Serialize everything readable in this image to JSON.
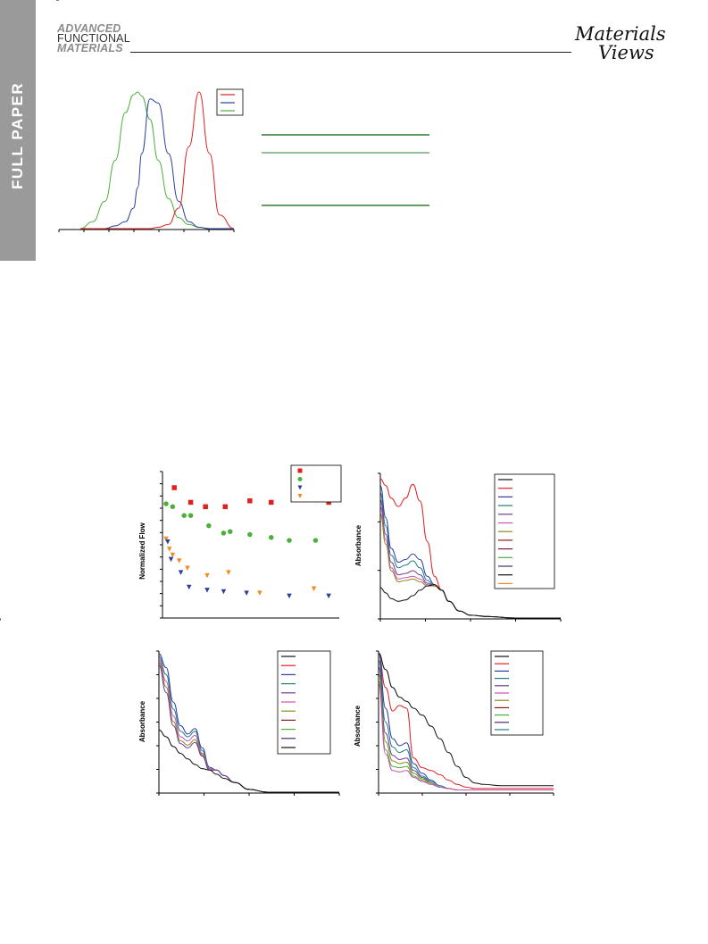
{
  "header": {
    "section_label": "FULL PAPER",
    "journal_logo": [
      "ADVANCED",
      "FUNCTIONAL",
      "MATERIALS"
    ],
    "publisher_logo": [
      "Materials",
      "Views"
    ]
  },
  "colors": {
    "red": "#e02020",
    "blue": "#2c3f9e",
    "green": "#4caf3a",
    "orange": "#f28c1e",
    "sidebar": "#9a9a9a"
  },
  "chart_data": [
    {
      "id": "emission-spectra",
      "type": "line",
      "x": [
        0,
        6,
        12,
        17,
        22,
        26,
        28,
        30,
        34,
        38,
        43,
        48,
        53,
        58,
        63,
        68,
        75
      ],
      "ylim": [
        0,
        1
      ],
      "series": [
        {
          "color": "green",
          "values": [
            0.0,
            0.05,
            0.2,
            0.5,
            0.85,
            0.98,
            1.0,
            0.97,
            0.8,
            0.5,
            0.22,
            0.08,
            0.03,
            0.01,
            0.0,
            0.0,
            0.0
          ]
        },
        {
          "color": "blue",
          "values": [
            0.0,
            0.0,
            0.0,
            0.02,
            0.05,
            0.15,
            0.3,
            0.55,
            0.95,
            0.92,
            0.55,
            0.2,
            0.05,
            0.01,
            0.0,
            0.0,
            0.0
          ]
        },
        {
          "color": "red",
          "values": [
            0.0,
            0.0,
            0.0,
            0.0,
            0.0,
            0.0,
            0.0,
            0.0,
            0.0,
            0.01,
            0.03,
            0.15,
            0.6,
            1.0,
            0.55,
            0.1,
            0.0
          ]
        }
      ],
      "legend_colors": [
        "red",
        "blue",
        "green"
      ]
    },
    {
      "id": "normalized-flow",
      "type": "scatter",
      "ylabel": "Normalized Flow",
      "xlim": [
        0,
        100
      ],
      "ylim": [
        0,
        100
      ],
      "series": [
        {
          "color": "red",
          "marker": "square",
          "x": [
            5,
            15,
            24,
            36,
            51,
            64,
            99
          ],
          "y": [
            89,
            79,
            76,
            76,
            80,
            79,
            79
          ]
        },
        {
          "color": "green",
          "marker": "circle",
          "x": [
            0,
            4,
            11,
            15,
            26,
            35,
            39,
            51,
            64,
            75,
            91
          ],
          "y": [
            78,
            76,
            70,
            70,
            63,
            58,
            59,
            57,
            55,
            53,
            53
          ]
        },
        {
          "color": "orange",
          "marker": "triangle-down",
          "x": [
            0,
            2,
            4,
            8,
            13,
            25,
            38,
            57,
            90
          ],
          "y": [
            54,
            47,
            43,
            39,
            34,
            29,
            31,
            17,
            20
          ]
        },
        {
          "color": "blue",
          "marker": "triangle-down",
          "x": [
            1,
            3,
            9,
            14,
            25,
            35,
            49,
            75,
            99
          ],
          "y": [
            52,
            40,
            31,
            21,
            19,
            18,
            17,
            15,
            15
          ]
        }
      ],
      "legend_colors": [
        "red",
        "green",
        "blue",
        "orange"
      ]
    },
    {
      "id": "absorbance-1",
      "type": "line",
      "ylabel": "Absorbance",
      "x": [
        0,
        3,
        6,
        10,
        14,
        18,
        22,
        26,
        30,
        34,
        38,
        44,
        50,
        60,
        75,
        100
      ],
      "ylim": [
        0,
        1
      ],
      "series": [
        {
          "color": "red",
          "values": [
            1.0,
            0.95,
            0.86,
            0.8,
            0.86,
            0.96,
            0.84,
            0.55,
            0.3,
            0.2,
            0.12,
            0.05,
            0.02,
            0.01,
            0.0,
            0.0
          ]
        },
        {
          "color": "blue",
          "values": [
            0.95,
            0.72,
            0.5,
            0.4,
            0.42,
            0.46,
            0.42,
            0.3,
            0.24,
            0.2,
            0.12,
            0.05,
            0.02,
            0.01,
            0.0,
            0.0
          ]
        },
        {
          "color": "teal",
          "values": [
            0.9,
            0.66,
            0.45,
            0.36,
            0.38,
            0.41,
            0.36,
            0.27,
            0.23,
            0.2,
            0.12,
            0.05,
            0.02,
            0.01,
            0.0,
            0.0
          ]
        },
        {
          "color": "purple",
          "values": [
            0.85,
            0.6,
            0.4,
            0.31,
            0.32,
            0.34,
            0.31,
            0.25,
            0.23,
            0.2,
            0.12,
            0.05,
            0.02,
            0.01,
            0.0,
            0.0
          ]
        },
        {
          "color": "magenta",
          "values": [
            0.8,
            0.56,
            0.36,
            0.28,
            0.29,
            0.3,
            0.28,
            0.24,
            0.23,
            0.2,
            0.12,
            0.05,
            0.02,
            0.01,
            0.0,
            0.0
          ]
        },
        {
          "color": "olive",
          "values": [
            0.75,
            0.53,
            0.34,
            0.26,
            0.27,
            0.28,
            0.26,
            0.23,
            0.23,
            0.2,
            0.12,
            0.05,
            0.02,
            0.01,
            0.0,
            0.0
          ]
        },
        {
          "color": "black",
          "values": [
            0.22,
            0.18,
            0.14,
            0.12,
            0.13,
            0.16,
            0.2,
            0.23,
            0.24,
            0.2,
            0.12,
            0.05,
            0.02,
            0.01,
            0.0,
            0.0
          ]
        }
      ],
      "legend_colors": [
        "black",
        "red",
        "blue",
        "teal",
        "purple",
        "magenta",
        "olive",
        "darkred",
        "maroon",
        "green",
        "darkpurple",
        "black",
        "orange"
      ]
    },
    {
      "id": "absorbance-2",
      "type": "line",
      "ylabel": "Absorbance",
      "x": [
        0,
        4,
        8,
        12,
        16,
        20,
        24,
        28,
        32,
        36,
        42,
        50,
        60,
        75,
        100
      ],
      "ylim": [
        0,
        1
      ],
      "series": [
        {
          "color": "blue",
          "values": [
            1.0,
            0.9,
            0.65,
            0.48,
            0.42,
            0.46,
            0.32,
            0.18,
            0.16,
            0.12,
            0.07,
            0.02,
            0.0,
            0.0,
            0.0
          ]
        },
        {
          "color": "teal",
          "values": [
            0.98,
            0.85,
            0.6,
            0.44,
            0.4,
            0.44,
            0.3,
            0.17,
            0.16,
            0.12,
            0.07,
            0.02,
            0.0,
            0.0,
            0.0
          ]
        },
        {
          "color": "magenta",
          "values": [
            0.96,
            0.8,
            0.55,
            0.4,
            0.37,
            0.41,
            0.28,
            0.17,
            0.16,
            0.12,
            0.07,
            0.02,
            0.0,
            0.0,
            0.0
          ]
        },
        {
          "color": "olive",
          "values": [
            0.94,
            0.76,
            0.51,
            0.37,
            0.34,
            0.38,
            0.27,
            0.16,
            0.16,
            0.12,
            0.07,
            0.02,
            0.0,
            0.0,
            0.0
          ]
        },
        {
          "color": "purple",
          "values": [
            0.92,
            0.72,
            0.48,
            0.35,
            0.32,
            0.36,
            0.26,
            0.16,
            0.16,
            0.12,
            0.07,
            0.02,
            0.0,
            0.0,
            0.0
          ]
        },
        {
          "color": "black",
          "values": [
            0.45,
            0.4,
            0.33,
            0.28,
            0.24,
            0.2,
            0.17,
            0.16,
            0.13,
            0.1,
            0.07,
            0.02,
            0.0,
            0.0,
            0.0
          ]
        }
      ],
      "legend_colors": [
        "black",
        "red",
        "blue",
        "teal",
        "purple",
        "magenta",
        "olive",
        "darkred",
        "green",
        "darkpurple",
        "black"
      ]
    },
    {
      "id": "absorbance-3",
      "type": "line",
      "ylabel": "Absorbance",
      "x": [
        0,
        4,
        8,
        12,
        16,
        20,
        25,
        30,
        35,
        40,
        45,
        50,
        55,
        60,
        70,
        80,
        100
      ],
      "ylim": [
        0,
        1
      ],
      "series": [
        {
          "color": "black",
          "values": [
            1.0,
            0.88,
            0.75,
            0.68,
            0.65,
            0.6,
            0.55,
            0.47,
            0.38,
            0.28,
            0.18,
            0.1,
            0.06,
            0.05,
            0.04,
            0.04,
            0.04
          ]
        },
        {
          "color": "red",
          "values": [
            1.0,
            0.75,
            0.58,
            0.62,
            0.6,
            0.24,
            0.17,
            0.15,
            0.12,
            0.08,
            0.05,
            0.03,
            0.02,
            0.02,
            0.02,
            0.02,
            0.02
          ]
        },
        {
          "color": "blue",
          "values": [
            1.0,
            0.6,
            0.38,
            0.33,
            0.35,
            0.2,
            0.13,
            0.08,
            0.04,
            0.02,
            0.01,
            0.01,
            0.01,
            0.01,
            0.01,
            0.01,
            0.01
          ]
        },
        {
          "color": "teal",
          "values": [
            0.95,
            0.5,
            0.32,
            0.28,
            0.3,
            0.17,
            0.11,
            0.07,
            0.04,
            0.02,
            0.01,
            0.01,
            0.01,
            0.01,
            0.01,
            0.01,
            0.01
          ]
        },
        {
          "color": "purple",
          "values": [
            0.9,
            0.42,
            0.26,
            0.23,
            0.24,
            0.15,
            0.1,
            0.06,
            0.03,
            0.02,
            0.01,
            0.01,
            0.01,
            0.01,
            0.01,
            0.01,
            0.01
          ]
        },
        {
          "color": "olive",
          "values": [
            0.85,
            0.36,
            0.22,
            0.2,
            0.21,
            0.13,
            0.09,
            0.06,
            0.03,
            0.02,
            0.01,
            0.01,
            0.01,
            0.01,
            0.01,
            0.01,
            0.01
          ]
        },
        {
          "color": "green",
          "values": [
            0.8,
            0.3,
            0.18,
            0.17,
            0.18,
            0.11,
            0.08,
            0.05,
            0.03,
            0.02,
            0.01,
            0.01,
            0.01,
            0.01,
            0.01,
            0.01,
            0.01
          ]
        },
        {
          "color": "magenta",
          "values": [
            0.78,
            0.27,
            0.15,
            0.14,
            0.15,
            0.1,
            0.07,
            0.05,
            0.03,
            0.02,
            0.01,
            0.01,
            0.01,
            0.01,
            0.01,
            0.01,
            0.01
          ]
        }
      ],
      "legend_colors": [
        "black",
        "red",
        "blue",
        "teal",
        "purple",
        "magenta",
        "olive",
        "darkred",
        "green",
        "darkpurple",
        "teal"
      ]
    }
  ]
}
